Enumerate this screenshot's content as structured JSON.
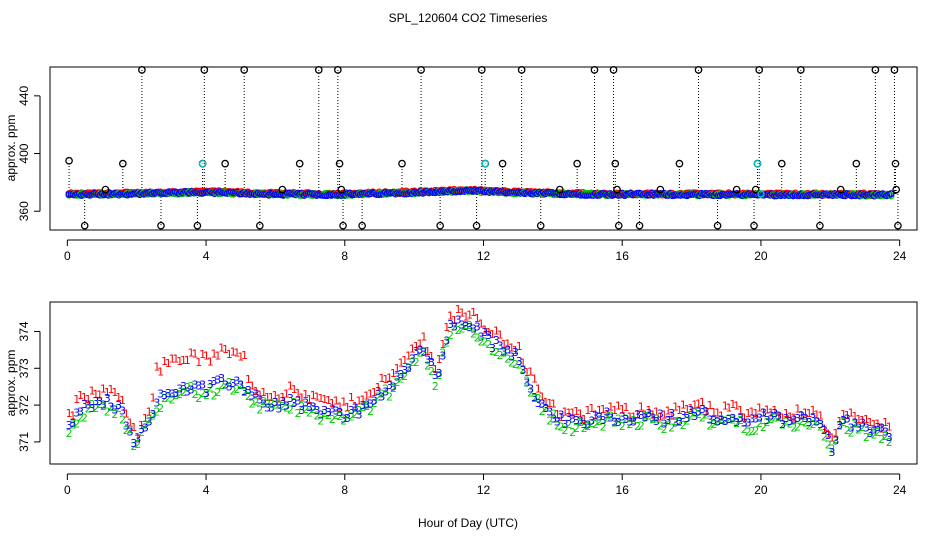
{
  "chart_data": [
    {
      "panel": "top",
      "type": "scatter",
      "title": "SPL_120604  CO2 Timeseries",
      "xlabel": "",
      "ylabel": "approx. ppm",
      "xlim": [
        -0.5,
        24.5
      ],
      "ylim": [
        347,
        460
      ],
      "xticks": [
        "0",
        "4",
        "8",
        "12",
        "16",
        "20",
        "24"
      ],
      "yticks": [
        "360",
        "400",
        "440"
      ],
      "series": [
        {
          "name": "blue",
          "color": "#0000ff",
          "baseline": 372,
          "anchors": [
            [
              0.0,
              371.5
            ],
            [
              2.0,
              372.2
            ],
            [
              4.0,
              373.2
            ],
            [
              6.0,
              371.8
            ],
            [
              8.0,
              371.6
            ],
            [
              10.0,
              373.0
            ],
            [
              11.5,
              374.2
            ],
            [
              13.0,
              372.8
            ],
            [
              15.0,
              371.8
            ],
            [
              18.0,
              371.6
            ],
            [
              21.0,
              371.5
            ],
            [
              23.7,
              371.4
            ]
          ]
        },
        {
          "name": "green",
          "color": "#00cc00"
        },
        {
          "name": "red",
          "color": "#ff0000"
        }
      ],
      "spikes": [
        {
          "x": 0.05,
          "y": 395
        },
        {
          "x": 0.5,
          "y": 350
        },
        {
          "x": 1.1,
          "y": 375
        },
        {
          "x": 1.6,
          "y": 393
        },
        {
          "x": 2.15,
          "y": 458
        },
        {
          "x": 2.7,
          "y": 350
        },
        {
          "x": 3.75,
          "y": 350
        },
        {
          "x": 3.9,
          "y": 393
        },
        {
          "x": 3.95,
          "y": 458
        },
        {
          "x": 4.55,
          "y": 393
        },
        {
          "x": 5.1,
          "y": 458
        },
        {
          "x": 5.55,
          "y": 350
        },
        {
          "x": 6.2,
          "y": 375
        },
        {
          "x": 6.7,
          "y": 393
        },
        {
          "x": 7.25,
          "y": 458
        },
        {
          "x": 7.8,
          "y": 458
        },
        {
          "x": 7.85,
          "y": 393
        },
        {
          "x": 7.9,
          "y": 375
        },
        {
          "x": 7.95,
          "y": 350
        },
        {
          "x": 8.5,
          "y": 350
        },
        {
          "x": 9.65,
          "y": 393
        },
        {
          "x": 10.2,
          "y": 458
        },
        {
          "x": 10.75,
          "y": 350
        },
        {
          "x": 11.8,
          "y": 350
        },
        {
          "x": 11.95,
          "y": 458
        },
        {
          "x": 12.05,
          "y": 393
        },
        {
          "x": 12.55,
          "y": 393
        },
        {
          "x": 13.1,
          "y": 458
        },
        {
          "x": 13.65,
          "y": 350
        },
        {
          "x": 14.2,
          "y": 375
        },
        {
          "x": 14.7,
          "y": 393
        },
        {
          "x": 15.2,
          "y": 458
        },
        {
          "x": 15.75,
          "y": 458
        },
        {
          "x": 15.8,
          "y": 393
        },
        {
          "x": 15.85,
          "y": 375
        },
        {
          "x": 15.9,
          "y": 350
        },
        {
          "x": 16.5,
          "y": 350
        },
        {
          "x": 17.1,
          "y": 375
        },
        {
          "x": 17.65,
          "y": 393
        },
        {
          "x": 18.2,
          "y": 458
        },
        {
          "x": 18.75,
          "y": 350
        },
        {
          "x": 19.3,
          "y": 375
        },
        {
          "x": 19.8,
          "y": 350
        },
        {
          "x": 19.85,
          "y": 375
        },
        {
          "x": 19.9,
          "y": 393
        },
        {
          "x": 19.95,
          "y": 458
        },
        {
          "x": 20.6,
          "y": 393
        },
        {
          "x": 21.15,
          "y": 458
        },
        {
          "x": 21.7,
          "y": 350
        },
        {
          "x": 22.3,
          "y": 375
        },
        {
          "x": 22.75,
          "y": 393
        },
        {
          "x": 23.3,
          "y": 458
        },
        {
          "x": 23.85,
          "y": 458
        },
        {
          "x": 23.88,
          "y": 393
        },
        {
          "x": 23.9,
          "y": 375
        },
        {
          "x": 23.95,
          "y": 350
        }
      ],
      "cyan_points": [
        {
          "x": 3.9,
          "y": 393
        },
        {
          "x": 12.05,
          "y": 393
        },
        {
          "x": 19.9,
          "y": 393
        },
        {
          "x": 20.0,
          "y": 372
        }
      ]
    },
    {
      "panel": "bottom",
      "type": "scatter",
      "xlabel": "Hour of Day (UTC)",
      "ylabel": "approx. ppm",
      "xlim": [
        -0.5,
        24.5
      ],
      "ylim": [
        370.4,
        374.8
      ],
      "xticks": [
        "0",
        "4",
        "8",
        "12",
        "16",
        "20",
        "24"
      ],
      "yticks": [
        "371",
        "372",
        "373",
        "374"
      ],
      "series": [
        {
          "name": "3",
          "symbol": "3",
          "color": "#0000ff",
          "offset": 0.0
        },
        {
          "name": "2",
          "symbol": "2",
          "color": "#00cc00",
          "offset": -0.12
        },
        {
          "name": "1",
          "symbol": "1",
          "color": "#ff0000",
          "offset": 0.28
        }
      ],
      "anchors": [
        [
          0.05,
          371.4
        ],
        [
          0.3,
          371.8
        ],
        [
          0.7,
          372.0
        ],
        [
          1.1,
          372.1
        ],
        [
          1.5,
          371.9
        ],
        [
          1.8,
          371.4
        ],
        [
          2.0,
          370.9
        ],
        [
          2.2,
          371.4
        ],
        [
          2.6,
          372.1
        ],
        [
          3.0,
          372.4
        ],
        [
          3.5,
          372.5
        ],
        [
          4.0,
          372.4
        ],
        [
          4.5,
          372.6
        ],
        [
          5.0,
          372.6
        ],
        [
          5.5,
          372.1
        ],
        [
          6.0,
          372.0
        ],
        [
          6.5,
          372.1
        ],
        [
          7.0,
          371.9
        ],
        [
          7.5,
          371.8
        ],
        [
          8.0,
          371.7
        ],
        [
          8.5,
          371.9
        ],
        [
          9.0,
          372.3
        ],
        [
          9.5,
          372.6
        ],
        [
          10.0,
          373.3
        ],
        [
          10.3,
          373.5
        ],
        [
          10.5,
          373.1
        ],
        [
          10.65,
          372.6
        ],
        [
          10.8,
          373.3
        ],
        [
          11.0,
          374.0
        ],
        [
          11.3,
          374.3
        ],
        [
          11.7,
          374.1
        ],
        [
          12.0,
          373.9
        ],
        [
          12.5,
          373.5
        ],
        [
          13.0,
          373.3
        ],
        [
          13.3,
          372.6
        ],
        [
          13.7,
          372.0
        ],
        [
          14.2,
          371.6
        ],
        [
          14.7,
          371.5
        ],
        [
          15.2,
          371.6
        ],
        [
          15.7,
          371.7
        ],
        [
          16.2,
          371.6
        ],
        [
          16.7,
          371.7
        ],
        [
          17.2,
          371.6
        ],
        [
          17.7,
          371.7
        ],
        [
          18.2,
          371.8
        ],
        [
          18.7,
          371.6
        ],
        [
          19.2,
          371.7
        ],
        [
          19.7,
          371.5
        ],
        [
          20.2,
          371.7
        ],
        [
          20.7,
          371.6
        ],
        [
          21.2,
          371.6
        ],
        [
          21.6,
          371.7
        ],
        [
          21.9,
          371.2
        ],
        [
          22.05,
          370.8
        ],
        [
          22.3,
          371.5
        ],
        [
          22.7,
          371.5
        ],
        [
          23.1,
          371.3
        ],
        [
          23.5,
          371.3
        ],
        [
          23.7,
          371.2
        ]
      ]
    }
  ]
}
